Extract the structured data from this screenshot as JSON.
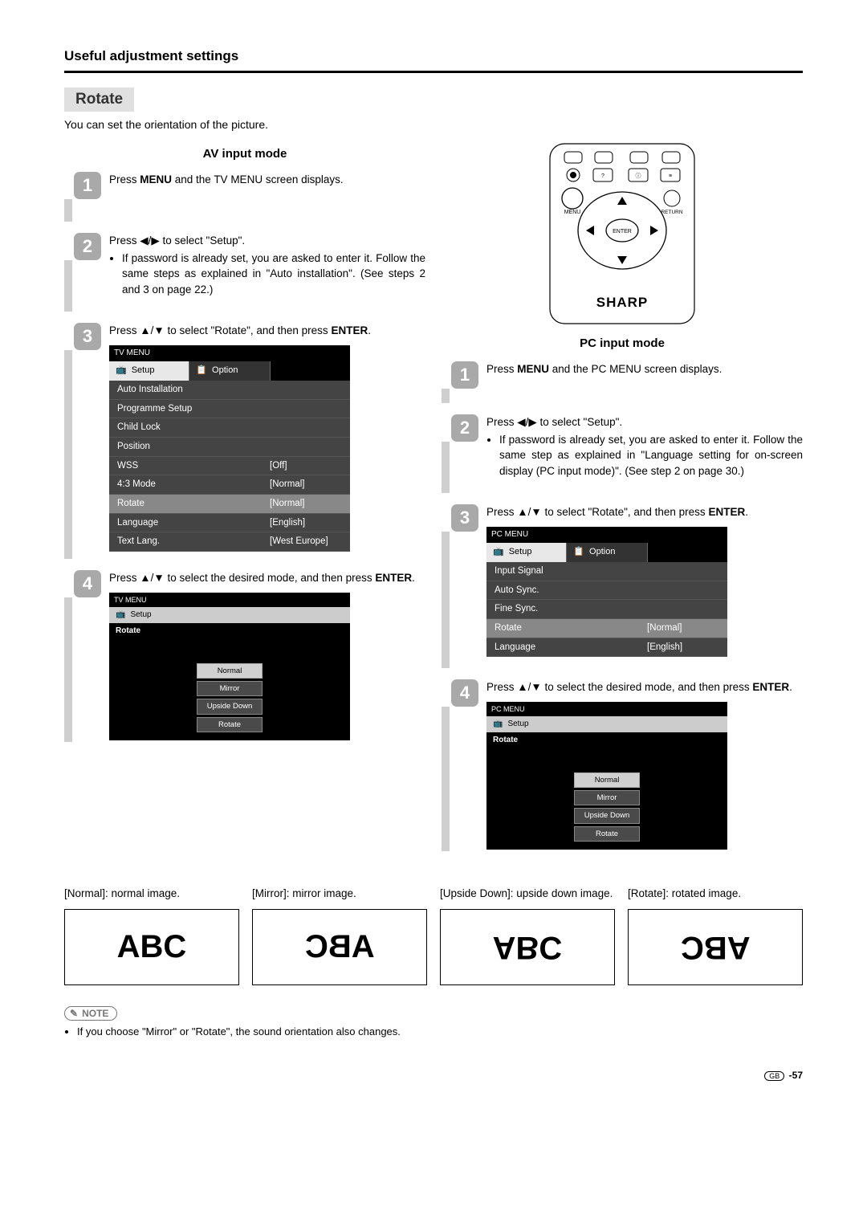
{
  "header": {
    "title": "Useful adjustment settings"
  },
  "rotate_label": "Rotate",
  "intro": "You can set the orientation of the picture.",
  "left": {
    "mode_title": "AV input mode",
    "steps": {
      "s1": {
        "num": "1",
        "pre": "Press ",
        "bold": "MENU",
        "post": " and the TV MENU screen displays."
      },
      "s2": {
        "num": "2",
        "line": "Press ◀/▶ to select \"Setup\".",
        "bullet": "If password is already set, you are asked to enter it. Follow the same steps as explained in \"Auto installation\". (See steps 2 and 3 on page 22.)"
      },
      "s3": {
        "num": "3",
        "line_a": "Press ▲/▼ to select \"Rotate\", and then press ",
        "line_b": "ENTER",
        "line_c": "."
      },
      "s4": {
        "num": "4",
        "line_a": "Press ▲/▼ to select the desired mode, and then press ",
        "line_b": "ENTER",
        "line_c": "."
      }
    },
    "menu": {
      "title": "TV MENU",
      "tab_setup": "Setup",
      "tab_option": "Option",
      "rows": [
        {
          "label": "Auto Installation",
          "value": ""
        },
        {
          "label": "Programme Setup",
          "value": ""
        },
        {
          "label": "Child Lock",
          "value": ""
        },
        {
          "label": "Position",
          "value": ""
        },
        {
          "label": "WSS",
          "value": "[Off]"
        },
        {
          "label": "4:3 Mode",
          "value": "[Normal]"
        },
        {
          "label": "Rotate",
          "value": "[Normal]",
          "selected": true
        },
        {
          "label": "Language",
          "value": "[English]"
        },
        {
          "label": "Text Lang.",
          "value": "[West Europe]"
        }
      ]
    },
    "rotate_menu": {
      "title": "TV MENU",
      "tab": "Setup",
      "sub": "Rotate",
      "options": [
        "Normal",
        "Mirror",
        "Upside Down",
        "Rotate"
      ]
    }
  },
  "right": {
    "mode_title": "PC input mode",
    "steps": {
      "s1": {
        "num": "1",
        "pre": "Press ",
        "bold": "MENU",
        "post": " and the PC MENU screen displays."
      },
      "s2": {
        "num": "2",
        "line": "Press ◀/▶ to select \"Setup\".",
        "bullet": "If password is already set, you are asked to enter it. Follow the same step as explained in \"Language setting for on-screen display (PC input mode)\". (See step 2 on page 30.)"
      },
      "s3": {
        "num": "3",
        "line_a": "Press ▲/▼ to select \"Rotate\", and then press ",
        "line_b": "ENTER",
        "line_c": "."
      },
      "s4": {
        "num": "4",
        "line_a": "Press ▲/▼ to select the desired mode, and then press ",
        "line_b": "ENTER",
        "line_c": "."
      }
    },
    "menu": {
      "title": "PC MENU",
      "tab_setup": "Setup",
      "tab_option": "Option",
      "rows": [
        {
          "label": "Input Signal",
          "value": ""
        },
        {
          "label": "Auto Sync.",
          "value": ""
        },
        {
          "label": "Fine Sync.",
          "value": ""
        },
        {
          "label": "Rotate",
          "value": "[Normal]",
          "selected": true
        },
        {
          "label": "Language",
          "value": "[English]"
        }
      ]
    },
    "rotate_menu": {
      "title": "PC MENU",
      "tab": "Setup",
      "sub": "Rotate",
      "options": [
        "Normal",
        "Mirror",
        "Upside Down",
        "Rotate"
      ]
    },
    "remote": {
      "brand": "SHARP",
      "menu": "MENU",
      "enter": "ENTER",
      "return": "RETURN"
    }
  },
  "bottom": {
    "descs": [
      "[Normal]: normal image.",
      "[Mirror]: mirror image.",
      "[Upside Down]: upside down image.",
      "[Rotate]: rotated image."
    ],
    "abc": "ABC"
  },
  "note": {
    "label": "NOTE",
    "text": "If you choose \"Mirror\" or \"Rotate\", the sound orientation also changes."
  },
  "footer": {
    "gb": "GB",
    "page": " -57"
  }
}
